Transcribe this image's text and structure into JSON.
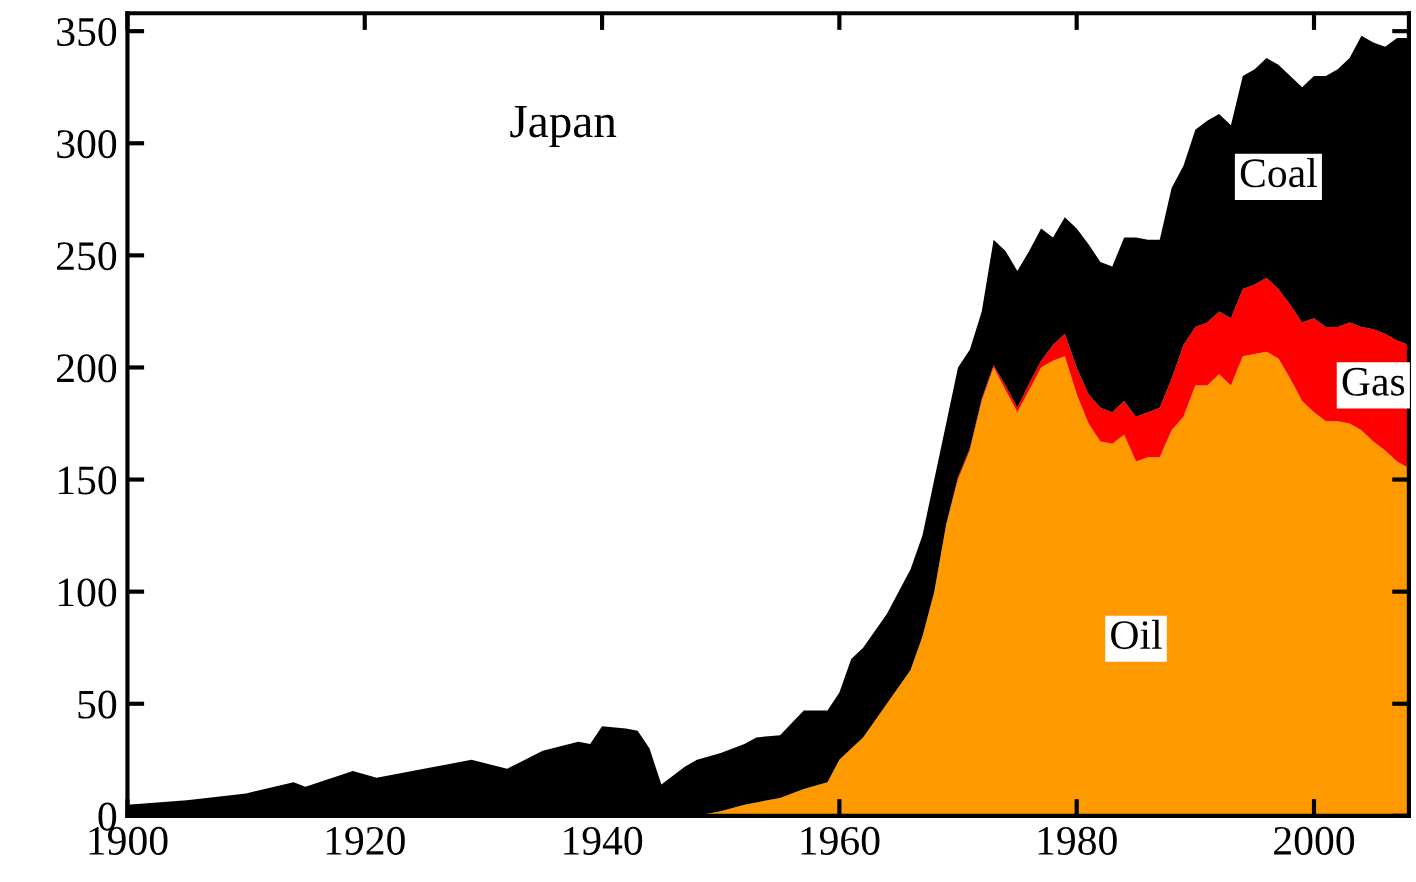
{
  "chart_data": {
    "type": "area",
    "stacked": true,
    "title": "Japan",
    "x": [
      1900,
      1905,
      1910,
      1914,
      1915,
      1919,
      1921,
      1925,
      1929,
      1932,
      1935,
      1938,
      1939,
      1940,
      1942,
      1943,
      1944,
      1945,
      1947,
      1948,
      1950,
      1952,
      1953,
      1955,
      1957,
      1959,
      1960,
      1961,
      1962,
      1964,
      1966,
      1967,
      1968,
      1969,
      1970,
      1971,
      1972,
      1973,
      1974,
      1975,
      1976,
      1977,
      1978,
      1979,
      1980,
      1981,
      1982,
      1983,
      1984,
      1985,
      1986,
      1987,
      1988,
      1989,
      1990,
      1991,
      1992,
      1993,
      1994,
      1995,
      1996,
      1997,
      1998,
      1999,
      2000,
      2001,
      2002,
      2003,
      2004,
      2005,
      2006,
      2007,
      2008
    ],
    "series": [
      {
        "name": "Oil",
        "color": "#ff9900",
        "values": [
          0,
          0,
          0,
          0,
          0,
          0,
          0,
          0,
          0,
          0,
          0,
          0,
          0,
          0,
          0,
          0,
          0,
          0,
          0,
          0,
          2,
          5,
          6,
          8,
          12,
          15,
          25,
          30,
          35,
          50,
          65,
          80,
          100,
          130,
          150,
          163,
          185,
          200,
          190,
          180,
          190,
          200,
          203,
          205,
          188,
          175,
          167,
          166,
          170,
          158,
          160,
          160,
          172,
          178,
          192,
          192,
          197,
          192,
          205,
          206,
          207,
          204,
          195,
          185,
          180,
          176,
          176,
          175,
          172,
          167,
          163,
          158,
          155
        ]
      },
      {
        "name": "Gas",
        "color": "#ff0000",
        "values": [
          0,
          0,
          0,
          0,
          0,
          0,
          0,
          0,
          0,
          0,
          0,
          0,
          0,
          0,
          0,
          0,
          0,
          0,
          0,
          0,
          0,
          0,
          0,
          0,
          0,
          0,
          0,
          0,
          0,
          0,
          0,
          0,
          0,
          0,
          1,
          1,
          1,
          1,
          2,
          2,
          3,
          3,
          7,
          10,
          12,
          13,
          15,
          14,
          15,
          20,
          20,
          22,
          23,
          32,
          26,
          28,
          28,
          30,
          30,
          31,
          33,
          31,
          33,
          35,
          42,
          42,
          42,
          45,
          46,
          50,
          52,
          54,
          55
        ]
      },
      {
        "name": "Coal",
        "color": "#000000",
        "values": [
          5,
          7,
          10,
          15,
          13,
          20,
          17,
          21,
          25,
          21,
          29,
          33,
          32,
          40,
          39,
          38,
          30,
          14,
          22,
          25,
          26,
          27,
          29,
          28,
          35,
          32,
          30,
          40,
          40,
          40,
          45,
          45,
          50,
          45,
          49,
          44,
          39,
          56,
          60,
          61,
          59,
          59,
          48,
          52,
          62,
          67,
          65,
          65,
          73,
          80,
          77,
          75,
          85,
          80,
          88,
          90,
          88,
          86,
          95,
          96,
          98,
          100,
          102,
          105,
          108,
          112,
          115,
          118,
          130,
          128,
          128,
          135,
          137
        ]
      }
    ],
    "xlim": [
      1900,
      2008
    ],
    "ylim": [
      0,
      358
    ],
    "xticks": [
      1900,
      1920,
      1940,
      1960,
      1980,
      2000
    ],
    "yticks": [
      0,
      50,
      100,
      150,
      200,
      250,
      300,
      350
    ],
    "grid": false,
    "legend": false
  }
}
